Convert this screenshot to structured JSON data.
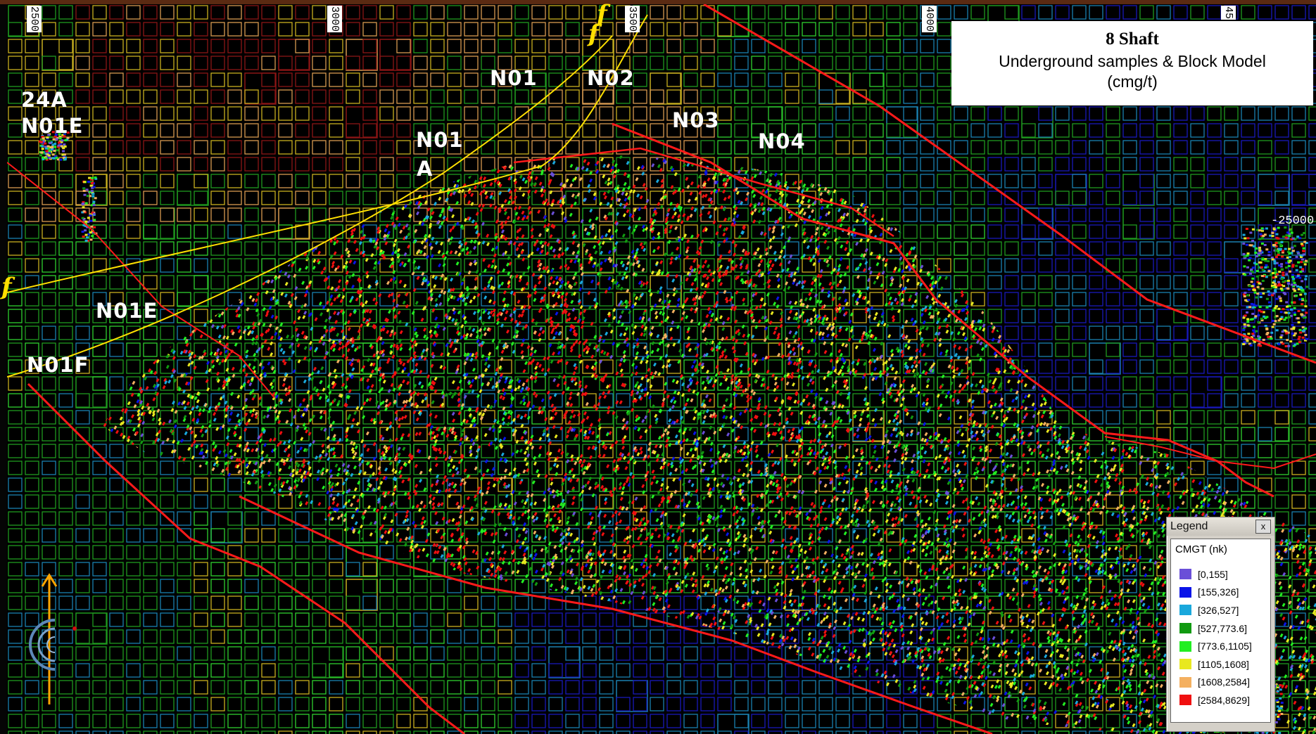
{
  "title": {
    "line1": "8 Shaft",
    "line2": "Underground samples  & Block Model",
    "line3": "(cmg/t)"
  },
  "drift_labels": [
    {
      "id": "n01",
      "text": "N01"
    },
    {
      "id": "n02",
      "text": "N02"
    },
    {
      "id": "n03",
      "text": "N03"
    },
    {
      "id": "n04",
      "text": "N04"
    },
    {
      "id": "n01a-1",
      "text": "N01"
    },
    {
      "id": "n01a-2",
      "text": "A"
    },
    {
      "id": "24a",
      "text": "24A"
    },
    {
      "id": "n01e-top",
      "text": "N01E"
    },
    {
      "id": "n01e",
      "text": "N01E"
    },
    {
      "id": "n01f",
      "text": "N01F"
    }
  ],
  "fault_labels": [
    "f",
    "f",
    "f"
  ],
  "grid_ticks": {
    "x": [
      "2500",
      "3000",
      "3500",
      "4000",
      "45"
    ],
    "y": [
      "-25000"
    ]
  },
  "legend": {
    "header": "Legend",
    "close": "x",
    "attribute": "CMGT (nk)",
    "classes": [
      {
        "label": "[0,155]",
        "color": "#6a4fd8"
      },
      {
        "label": "[155,326]",
        "color": "#0a14e8"
      },
      {
        "label": "[326,527]",
        "color": "#1aa8dc"
      },
      {
        "label": "[527,773.6]",
        "color": "#119a11"
      },
      {
        "label": "[773.6,1105]",
        "color": "#22ee22"
      },
      {
        "label": "[1105,1608]",
        "color": "#e8e820"
      },
      {
        "label": "[1608,2584]",
        "color": "#f4b060"
      },
      {
        "label": "[2584,8629]",
        "color": "#f01010"
      }
    ]
  },
  "colors": {
    "background": "#000000",
    "fault_line": "#ff1a1a",
    "fault_trace": "#ffe000",
    "north_arrow": "#ffa500"
  }
}
